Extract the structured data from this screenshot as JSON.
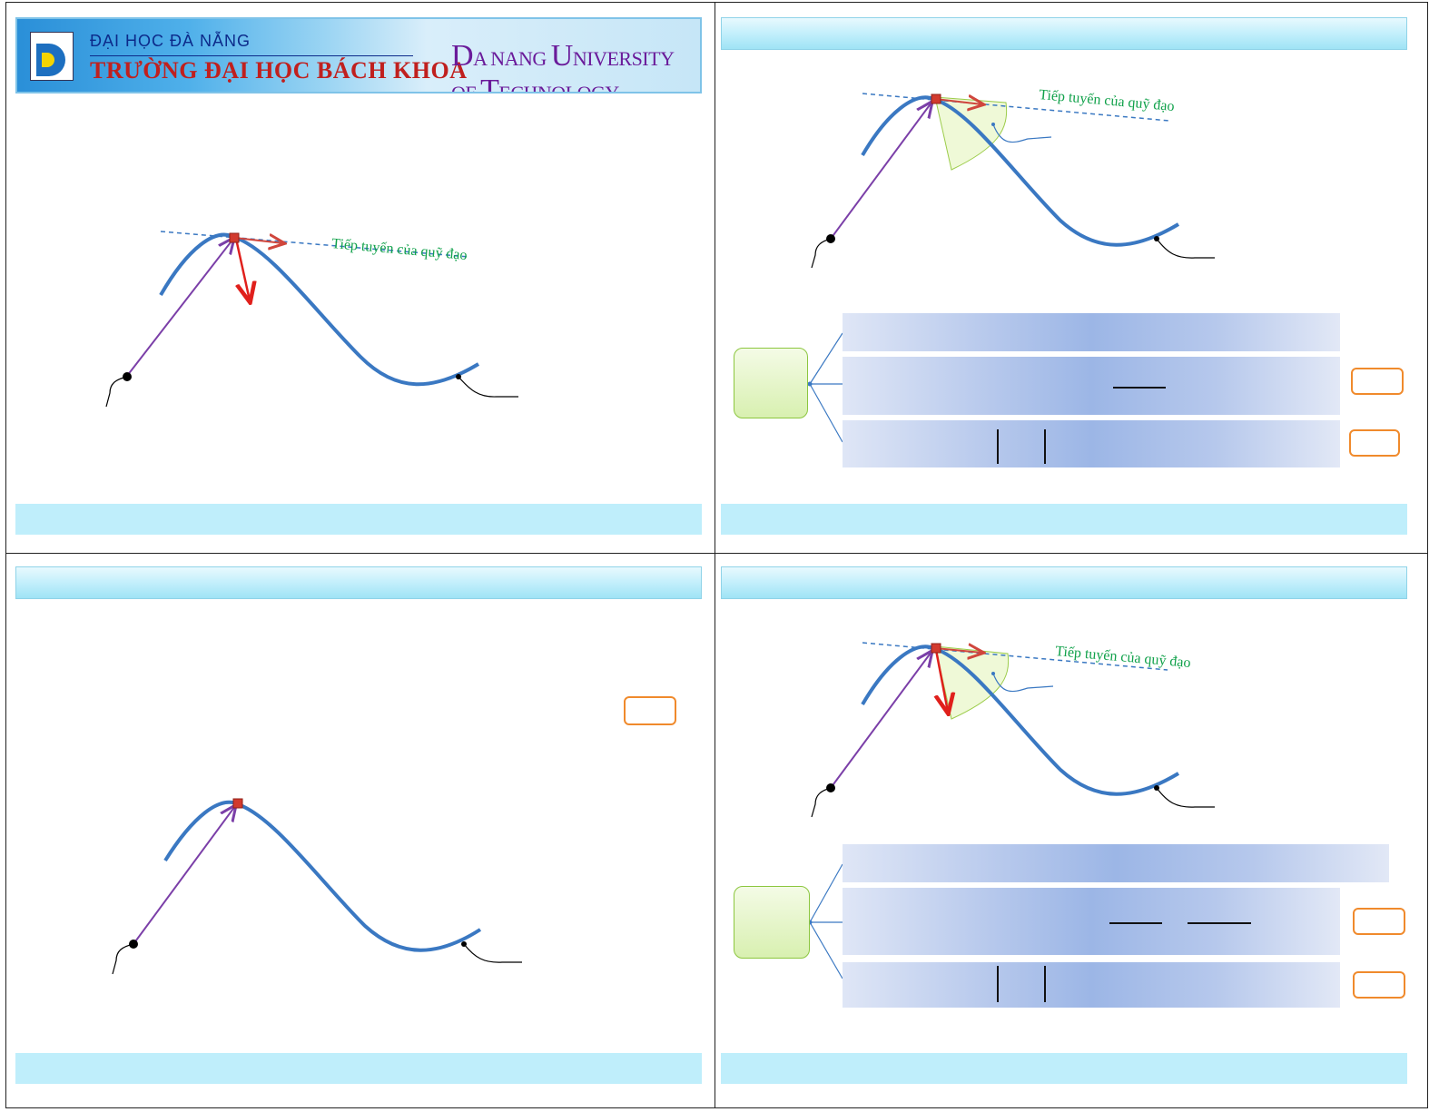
{
  "banner": {
    "vn_university": "ĐẠI HỌC ĐÀ NẴNG",
    "vn_school": "TRƯỜNG ĐẠI HỌC BÁCH KHOA",
    "en_d": "D",
    "en_a": "A NANG ",
    "en_u": "U",
    "en_niv": "NIVERSITY OF ",
    "en_t": "T",
    "en_ech": "ECHNOLOGY"
  },
  "diagram": {
    "tangent_label": "Tiếp tuyến của quỹ đạo"
  },
  "colors": {
    "trajectory": "#3a78c2",
    "position_vector": "#7b3fa8",
    "velocity_vector": "#d0463c",
    "accel_vector": "#e0201c",
    "tangent_line": "#3a78c2",
    "tangent_text": "#10a14a",
    "tag_border": "#f08a2c",
    "node_border": "#8cc63f",
    "titlebar": "#bfeefb"
  }
}
